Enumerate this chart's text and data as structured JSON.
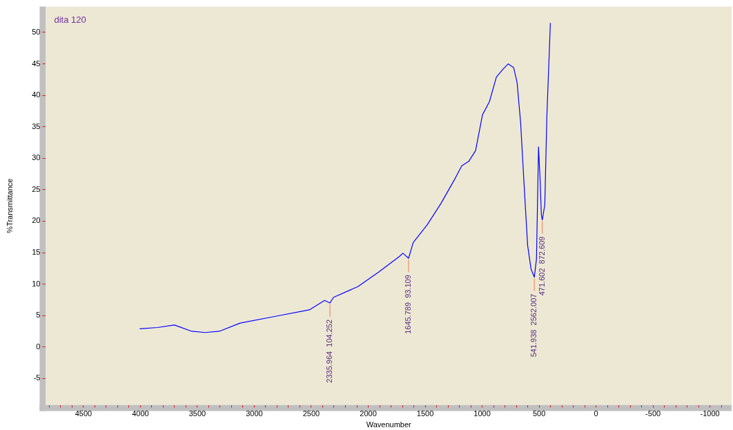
{
  "chart_data": {
    "type": "line",
    "title": "dita 120",
    "xlabel": "Wavenumber",
    "ylabel": "%Transmittance",
    "xlim": [
      4830,
      -1190
    ],
    "ylim": [
      -9.2,
      54.1
    ],
    "xticks": [
      {
        "value": 4800,
        "label": null
      },
      {
        "value": 4700,
        "label": null
      },
      {
        "value": 4600,
        "label": null
      },
      4500,
      {
        "value": 4400,
        "label": null
      },
      {
        "value": 4300,
        "label": null
      },
      {
        "value": 4200,
        "label": null
      },
      {
        "value": 4100,
        "label": null
      },
      4000,
      {
        "value": 3900,
        "label": null
      },
      {
        "value": 3800,
        "label": null
      },
      {
        "value": 3700,
        "label": null
      },
      {
        "value": 3600,
        "label": null
      },
      3500,
      {
        "value": 3400,
        "label": null
      },
      {
        "value": 3300,
        "label": null
      },
      {
        "value": 3200,
        "label": null
      },
      {
        "value": 3100,
        "label": null
      },
      3000,
      {
        "value": 2900,
        "label": null
      },
      {
        "value": 2800,
        "label": null
      },
      {
        "value": 2700,
        "label": null
      },
      {
        "value": 2600,
        "label": null
      },
      2500,
      {
        "value": 2400,
        "label": null
      },
      {
        "value": 2300,
        "label": null
      },
      {
        "value": 2200,
        "label": null
      },
      {
        "value": 2100,
        "label": null
      },
      2000,
      {
        "value": 1900,
        "label": null
      },
      {
        "value": 1800,
        "label": null
      },
      {
        "value": 1700,
        "label": null
      },
      {
        "value": 1600,
        "label": null
      },
      1500,
      {
        "value": 1400,
        "label": null
      },
      {
        "value": 1300,
        "label": null
      },
      {
        "value": 1200,
        "label": null
      },
      {
        "value": 1100,
        "label": null
      },
      1000,
      {
        "value": 900,
        "label": null
      },
      {
        "value": 800,
        "label": null
      },
      {
        "value": 700,
        "label": null
      },
      {
        "value": 600,
        "label": null
      },
      500,
      {
        "value": 400,
        "label": null
      },
      {
        "value": 300,
        "label": null
      },
      {
        "value": 200,
        "label": null
      },
      {
        "value": 100,
        "label": null
      },
      0,
      {
        "value": -100,
        "label": null
      },
      {
        "value": -200,
        "label": null
      },
      {
        "value": -300,
        "label": null
      },
      {
        "value": -400,
        "label": null
      },
      -500,
      {
        "value": -600,
        "label": null
      },
      {
        "value": -700,
        "label": null
      },
      {
        "value": -800,
        "label": null
      },
      {
        "value": -900,
        "label": null
      },
      -1000,
      {
        "value": -1100,
        "label": null
      }
    ],
    "yticks": [
      -5,
      0,
      5,
      10,
      15,
      20,
      25,
      30,
      35,
      40,
      45,
      50
    ],
    "grid": false,
    "legend": false,
    "marker": "none",
    "line_style": "solid",
    "series": [
      {
        "color": "#0000ff",
        "x": [
          4006,
          3850,
          3702,
          3672,
          3550,
          3429,
          3307,
          3125,
          2821,
          2517,
          2383,
          2336,
          2304,
          2091,
          1909,
          1726,
          1696,
          1646,
          1605,
          1483,
          1362,
          1240,
          1179,
          1118,
          1058,
          997,
          936,
          875,
          815,
          772,
          723,
          693,
          662,
          632,
          601,
          571,
          542,
          523,
          505,
          492,
          480,
          472,
          450,
          432,
          401
        ],
        "values": [
          2.9,
          3.1,
          3.5,
          3.3,
          2.5,
          2.3,
          2.5,
          3.8,
          4.85,
          5.9,
          7.4,
          7.0,
          7.9,
          9.6,
          11.9,
          14.4,
          14.9,
          14.1,
          16.6,
          19.4,
          22.8,
          26.7,
          28.8,
          29.5,
          31.2,
          36.9,
          39,
          42.9,
          44.2,
          45.0,
          44.4,
          42,
          35.6,
          25.9,
          16.2,
          12.4,
          11.1,
          14.0,
          31.8,
          26.9,
          21.0,
          20.2,
          22.6,
          36.6,
          51.5
        ]
      }
    ],
    "annotations": [
      {
        "text": "2335.964  104.252",
        "x": 2336,
        "y": 7.0
      },
      {
        "text": "1645.789  93.109",
        "x": 1646,
        "y": 14.1
      },
      {
        "text": "541.938  2562.007",
        "x": 542,
        "y": 11.1
      },
      {
        "text": "471.602  872.609",
        "x": 472,
        "y": 20.2
      }
    ]
  }
}
